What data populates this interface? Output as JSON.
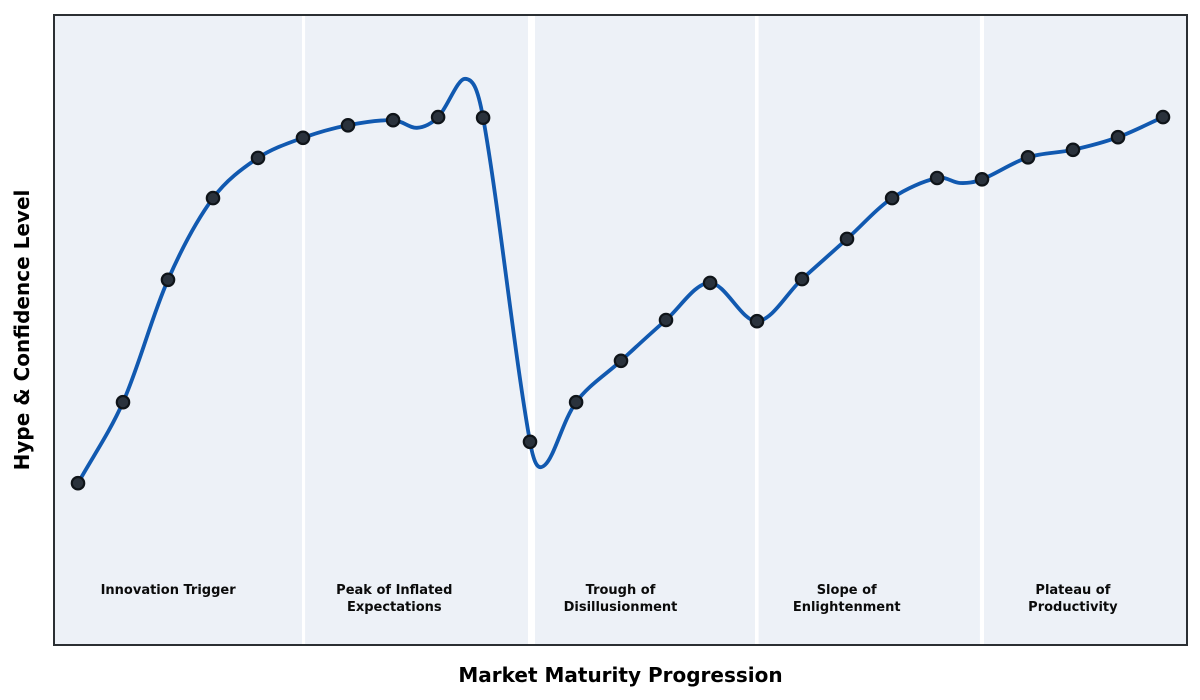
{
  "chart_data": {
    "type": "line",
    "title": "",
    "xlabel": "Market Maturity Progression",
    "ylabel": "Hype & Confidence Level",
    "xlim": [
      0,
      1
    ],
    "ylim": [
      0,
      100
    ],
    "grid": false,
    "legend": null,
    "axes_ticks_visible": false,
    "colors": {
      "line": "#1159b0",
      "marker_fill": "#2a323c",
      "marker_edge": "#0f1419",
      "band_fill": "#edf1f7",
      "band_gap": "#ffffff",
      "frame": "#2b2f33",
      "text": "#000000"
    },
    "series": [
      {
        "name": "Hype & Confidence Level",
        "marker": "circle",
        "points": [
          {
            "x": 0.0203,
            "y": 25.6
          },
          {
            "x": 0.0601,
            "y": 38.5
          },
          {
            "x": 0.0999,
            "y": 58.0
          },
          {
            "x": 0.1397,
            "y": 71.0
          },
          {
            "x": 0.1795,
            "y": 77.4
          },
          {
            "x": 0.2193,
            "y": 80.6
          },
          {
            "x": 0.2591,
            "y": 82.6
          },
          {
            "x": 0.2989,
            "y": 83.4
          },
          {
            "x": 0.3387,
            "y": 83.9
          },
          {
            "x": 0.3785,
            "y": 83.8
          },
          {
            "x": 0.42,
            "y": 32.2
          },
          {
            "x": 0.4607,
            "y": 38.5
          },
          {
            "x": 0.5004,
            "y": 45.1
          },
          {
            "x": 0.5402,
            "y": 51.6
          },
          {
            "x": 0.5792,
            "y": 57.5
          },
          {
            "x": 0.6207,
            "y": 51.4
          },
          {
            "x": 0.6605,
            "y": 58.1
          },
          {
            "x": 0.7003,
            "y": 64.5
          },
          {
            "x": 0.7401,
            "y": 71.0
          },
          {
            "x": 0.7799,
            "y": 74.2
          },
          {
            "x": 0.8196,
            "y": 74.0
          },
          {
            "x": 0.8603,
            "y": 77.5
          },
          {
            "x": 0.9001,
            "y": 78.7
          },
          {
            "x": 0.9399,
            "y": 80.7
          },
          {
            "x": 0.9797,
            "y": 83.9
          }
        ],
        "curve_shape_points": [
          {
            "x": 0.3201,
            "y": 82.2
          },
          {
            "x": 0.3625,
            "y": 90.0
          },
          {
            "x": 0.4332,
            "y": 28.5
          },
          {
            "x": 0.8002,
            "y": 73.4
          }
        ]
      }
    ],
    "phases": [
      {
        "label": "Innovation Trigger",
        "lines": [
          "Innovation Trigger"
        ],
        "label_x": 0.1,
        "band_start": 0.0,
        "band_end": 0.2184
      },
      {
        "label": "Peak of Inflated Expectations",
        "lines": [
          "Peak of Inflated",
          "Expectations"
        ],
        "label_x": 0.3,
        "band_start": 0.2211,
        "band_end": 0.4182
      },
      {
        "label": "Trough of Disillusionment",
        "lines": [
          "Trough of",
          "Disillusionment"
        ],
        "label_x": 0.5,
        "band_start": 0.4244,
        "band_end": 0.6189
      },
      {
        "label": "Slope of Enlightenment",
        "lines": [
          "Slope of",
          "Enlightenment"
        ],
        "label_x": 0.7,
        "band_start": 0.6221,
        "band_end": 0.8178
      },
      {
        "label": "Plateau of Productivity",
        "lines": [
          "Plateau of",
          "Productivity"
        ],
        "label_x": 0.9,
        "band_start": 0.8214,
        "band_end": 1.0
      }
    ]
  }
}
